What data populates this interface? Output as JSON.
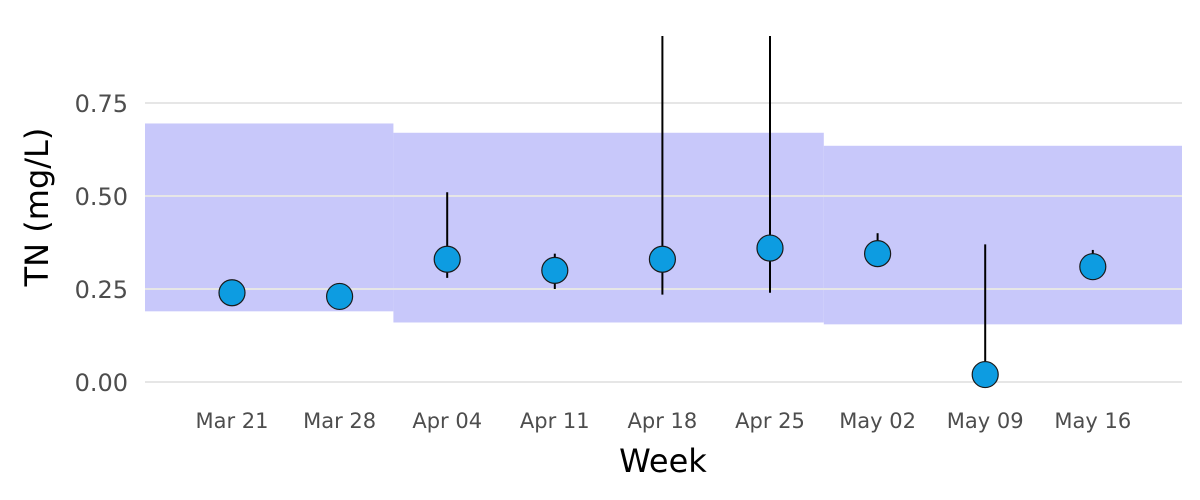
{
  "chart_data": {
    "type": "scatter",
    "xlabel": "Week",
    "ylabel": "TN (mg/L)",
    "categories": [
      "Mar 21",
      "Mar 28",
      "Apr 04",
      "Apr 11",
      "Apr 18",
      "Apr 25",
      "May 02",
      "May 09",
      "May 16"
    ],
    "y_ticks": [
      "0.00",
      "0.25",
      "0.50",
      "0.75"
    ],
    "ylim": [
      -0.04,
      0.93
    ],
    "grid": true,
    "legend": "none",
    "point_color": "#0d9ce1",
    "band_color": "#c8c8fa",
    "series": [
      {
        "values": [
          0.24,
          0.23,
          0.33,
          0.3,
          0.33,
          0.36,
          0.345,
          0.02,
          0.31
        ],
        "error_low": [
          null,
          null,
          0.28,
          0.25,
          0.235,
          0.24,
          0.325,
          0.0,
          0.29
        ],
        "error_high": [
          null,
          null,
          0.51,
          0.345,
          0.93,
          0.93,
          0.4,
          0.37,
          0.355
        ]
      }
    ],
    "bands": [
      {
        "from": "Mar 21",
        "to": "Mar 28",
        "low": 0.19,
        "high": 0.695
      },
      {
        "from": "Apr 04",
        "to": "Apr 25",
        "low": 0.16,
        "high": 0.67
      },
      {
        "from": "May 02",
        "to": "May 16",
        "low": 0.155,
        "high": 0.635
      }
    ]
  }
}
